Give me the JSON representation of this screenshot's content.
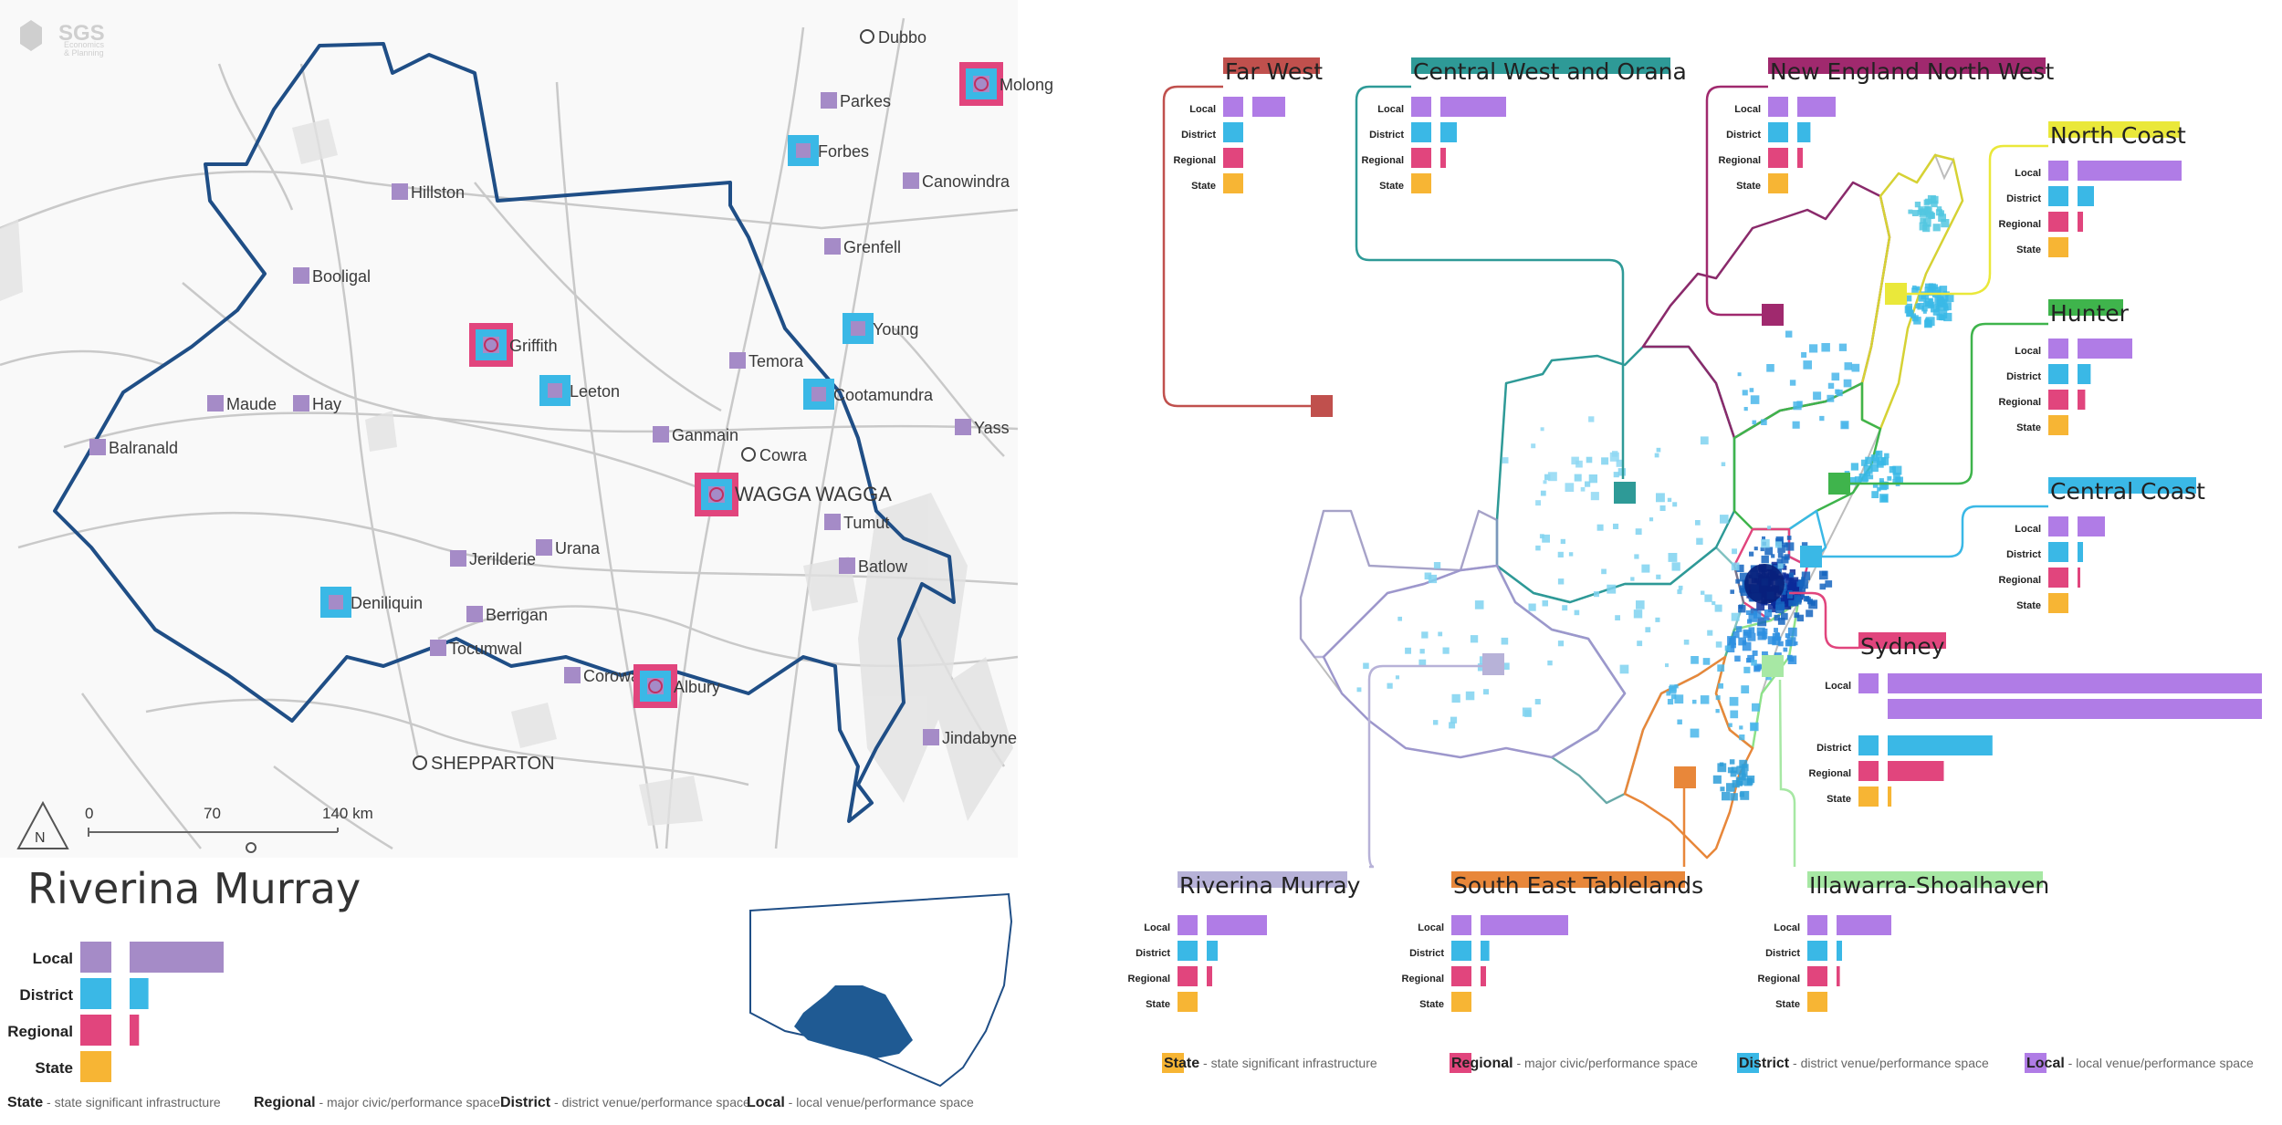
{
  "logo": {
    "name": "SGS",
    "sub1": "Economics",
    "sub2": "& Planning"
  },
  "colors": {
    "local": "#a58bc7",
    "district": "#3ab8e6",
    "regional": "#e1457d",
    "state": "#f7b534",
    "local_bright": "#b07ce6",
    "boundary": "#1f4e86"
  },
  "left_map": {
    "towns": [
      {
        "name": "Dubbo",
        "cat": "none"
      },
      {
        "name": "Molong",
        "cat": "regional"
      },
      {
        "name": "Parkes",
        "cat": "local"
      },
      {
        "name": "Forbes",
        "cat": "district"
      },
      {
        "name": "Canowindra",
        "cat": "local"
      },
      {
        "name": "Hillston",
        "cat": "local"
      },
      {
        "name": "Grenfell",
        "cat": "local"
      },
      {
        "name": "Booligal",
        "cat": "local"
      },
      {
        "name": "Young",
        "cat": "district"
      },
      {
        "name": "Griffith",
        "cat": "regional"
      },
      {
        "name": "Temora",
        "cat": "local"
      },
      {
        "name": "Leeton",
        "cat": "district"
      },
      {
        "name": "Cootamundra",
        "cat": "district"
      },
      {
        "name": "Maude",
        "cat": "local"
      },
      {
        "name": "Hay",
        "cat": "local"
      },
      {
        "name": "Yass",
        "cat": "local"
      },
      {
        "name": "Balranald",
        "cat": "local"
      },
      {
        "name": "Ganmain",
        "cat": "local"
      },
      {
        "name": "Cowra",
        "cat": "none"
      },
      {
        "name": "WAGGA WAGGA",
        "cat": "regional"
      },
      {
        "name": "Tumut",
        "cat": "local"
      },
      {
        "name": "Urana",
        "cat": "local"
      },
      {
        "name": "Jerilderie",
        "cat": "local"
      },
      {
        "name": "Batlow",
        "cat": "local"
      },
      {
        "name": "Deniliquin",
        "cat": "district"
      },
      {
        "name": "Berrigan",
        "cat": "local"
      },
      {
        "name": "Tocumwal",
        "cat": "local"
      },
      {
        "name": "Corowa",
        "cat": "local"
      },
      {
        "name": "Albury",
        "cat": "regional"
      },
      {
        "name": "Jindabyne",
        "cat": "local"
      },
      {
        "name": "SHEPPARTON",
        "cat": "none"
      }
    ],
    "scale": {
      "t0": "0",
      "t1": "70",
      "t2": "140 km",
      "north": "N"
    },
    "region_title": "Riverina Murray",
    "legend": {
      "local": "Local",
      "district": "District",
      "regional": "Regional",
      "state": "State",
      "values": {
        "local": 1.0,
        "district": 0.2,
        "regional": 0.1,
        "state": 0.0
      }
    },
    "footer": [
      {
        "key": "State",
        "desc": " - state significant infrastructure"
      },
      {
        "key": "Regional",
        "desc": " - major civic/performance space"
      },
      {
        "key": "District",
        "desc": " - district venue/performance space"
      },
      {
        "key": "Local",
        "desc": " - local venue/performance space"
      }
    ]
  },
  "right_map": {
    "regions": [
      {
        "name": "Far West",
        "color": "#c0504d",
        "values": {
          "local": 0.3,
          "district": 0.0,
          "regional": 0.0,
          "state": 0.0
        }
      },
      {
        "name": "Central West and Orana",
        "color": "#2e9a97",
        "values": {
          "local": 0.6,
          "district": 0.15,
          "regional": 0.05,
          "state": 0.0
        }
      },
      {
        "name": "New England North West",
        "color": "#a0296e",
        "values": {
          "local": 0.35,
          "district": 0.12,
          "regional": 0.05,
          "state": 0.0
        }
      },
      {
        "name": "North Coast",
        "color": "#eae83a",
        "values": {
          "local": 0.95,
          "district": 0.15,
          "regional": 0.05,
          "state": 0.0
        }
      },
      {
        "name": "Hunter",
        "color": "#3fb44c",
        "values": {
          "local": 0.5,
          "district": 0.12,
          "regional": 0.07,
          "state": 0.0
        }
      },
      {
        "name": "Central Coast",
        "color": "#3ab8e6",
        "values": {
          "local": 0.25,
          "district": 0.05,
          "regional": 0.02,
          "state": 0.0
        }
      },
      {
        "name": "Sydney",
        "color": "#e1457d",
        "values": {
          "local": 1.0,
          "district": 0.28,
          "regional": 0.15,
          "state": 0.01
        }
      },
      {
        "name": "Riverina Murray",
        "color": "#b7b2d8",
        "values": {
          "local": 0.55,
          "district": 0.1,
          "regional": 0.05,
          "state": 0.0
        }
      },
      {
        "name": "South East Tablelands",
        "color": "#e8873a",
        "values": {
          "local": 0.8,
          "district": 0.08,
          "regional": 0.05,
          "state": 0.0
        }
      },
      {
        "name": "Illawarra-Shoalhaven",
        "color": "#a7e8a4",
        "values": {
          "local": 0.5,
          "district": 0.05,
          "regional": 0.03,
          "state": 0.0
        }
      }
    ],
    "sydney_secondary_local": 1.0,
    "chart_labels": {
      "local": "Local",
      "district": "District",
      "regional": "Regional",
      "state": "State"
    },
    "footer": [
      {
        "key": "State",
        "desc": " - state significant infrastructure"
      },
      {
        "key": "Regional",
        "desc": " - major civic/performance space"
      },
      {
        "key": "District",
        "desc": " - district venue/performance space"
      },
      {
        "key": "Local",
        "desc": " - local venue/performance space"
      }
    ]
  }
}
